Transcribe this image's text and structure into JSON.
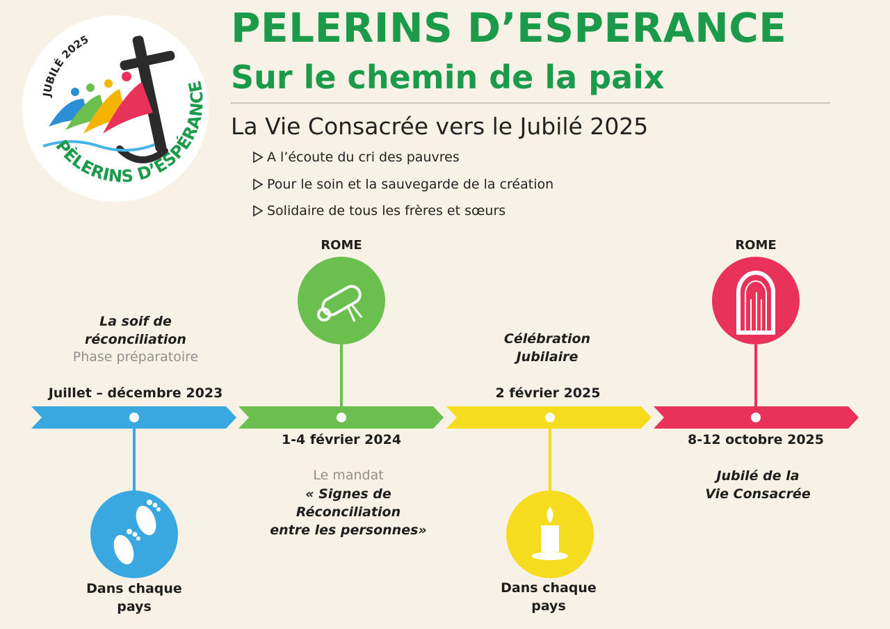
{
  "header": {
    "title": "PELERINS D’ESPERANCE",
    "subtitle": "Sur le chemin de la paix",
    "heading": "La Vie Consacrée vers le Jubilé 2025",
    "bullets": [
      "A l’écoute du cri des pauvres",
      "Pour le soin et la sauvegarde de la création",
      "Solidaire de tous les frères et sœurs"
    ]
  },
  "logo": {
    "top_text": "JUBILÉ 2025",
    "bottom_text": "PÈLERINS D’ESPÉRANCE"
  },
  "timeline": {
    "segments": [
      {
        "date": "Juillet – décembre 2023",
        "color": "#3aa8e0",
        "phase_line1": "La soif de",
        "phase_line2": "réconciliation",
        "phase_note": "Phase préparatoire",
        "icon": "footprints-icon",
        "place_line1": "Dans chaque",
        "place_line2": "pays"
      },
      {
        "date": "1-4 février 2024",
        "color": "#6bbf4e",
        "location": "ROME",
        "icon": "scroll-icon",
        "mandat_label": "Le mandat",
        "mandat_line1": "« Signes de",
        "mandat_line2": "Réconciliation",
        "mandat_line3": "entre les personnes»"
      },
      {
        "date": "2 février 2025",
        "color": "#f6dc1e",
        "phase_line1": "Célébration",
        "phase_line2": "Jubilaire",
        "icon": "candle-icon",
        "place_line1": "Dans chaque",
        "place_line2": "pays"
      },
      {
        "date": "8-12 octobre 2025",
        "color": "#e8325a",
        "location": "ROME",
        "icon": "holy-door-icon",
        "phase_line1": "Jubilé de la",
        "phase_line2": "Vie Consacrée"
      }
    ]
  }
}
